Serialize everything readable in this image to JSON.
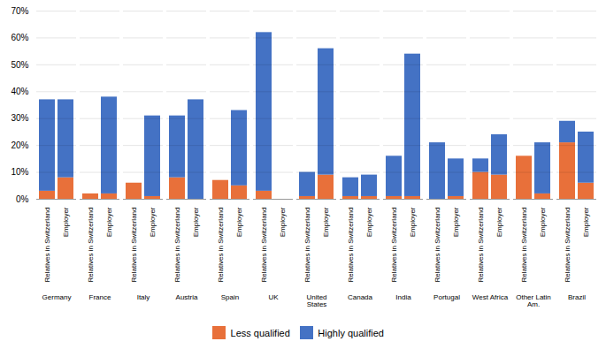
{
  "chart_data": {
    "type": "bar",
    "stacked": true,
    "categories": [
      "Germany",
      "France",
      "Italy",
      "Austria",
      "Spain",
      "UK",
      "United\nStates",
      "Canada",
      "India",
      "Portugal",
      "West Africa",
      "Other Latin\nAm.",
      "Brazil"
    ],
    "groups": [
      "Relatives in Switzerland",
      "Employer"
    ],
    "series": [
      {
        "name": "Less qualified",
        "color": "#e8703a",
        "values": [
          [
            3,
            8
          ],
          [
            2,
            2
          ],
          [
            6,
            1
          ],
          [
            8,
            0
          ],
          [
            7,
            5
          ],
          [
            3,
            0
          ],
          [
            1,
            9
          ],
          [
            1,
            1
          ],
          [
            1,
            1
          ],
          [
            0,
            1
          ],
          [
            10,
            9
          ],
          [
            16,
            2
          ],
          [
            21,
            6
          ]
        ]
      },
      {
        "name": "Highly qualified",
        "color": "#4472c4",
        "values": [
          [
            34,
            29
          ],
          [
            0,
            36
          ],
          [
            0,
            30
          ],
          [
            23,
            37
          ],
          [
            0,
            28
          ],
          [
            59,
            0
          ],
          [
            9,
            47
          ],
          [
            7,
            8
          ],
          [
            15,
            53
          ],
          [
            21,
            14
          ],
          [
            5,
            15
          ],
          [
            0,
            19
          ],
          [
            8,
            19
          ]
        ]
      }
    ],
    "ylim": [
      0,
      70
    ],
    "yticks": [
      {
        "value": 0,
        "label": "0%"
      },
      {
        "value": 10,
        "label": "10%"
      },
      {
        "value": 20,
        "label": "20%"
      },
      {
        "value": 30,
        "label": "30%"
      },
      {
        "value": 40,
        "label": "40%"
      },
      {
        "value": 50,
        "label": "50%"
      },
      {
        "value": 60,
        "label": "60%"
      },
      {
        "value": 70,
        "label": "70%"
      }
    ],
    "grid": true,
    "legend": "bottom"
  }
}
